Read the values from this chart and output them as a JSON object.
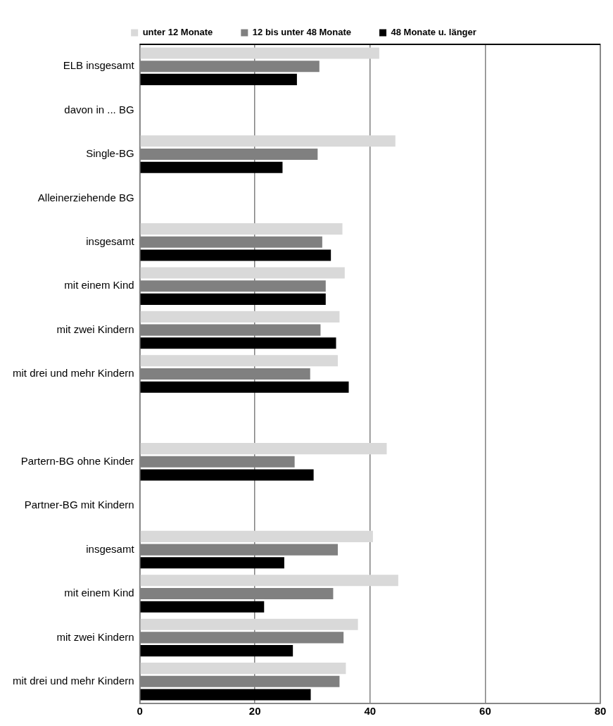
{
  "chart_data": {
    "type": "bar",
    "orientation": "horizontal",
    "categories": [
      "ELB insgesamt",
      "davon in ... BG",
      "Single-BG",
      "Alleinerziehende BG",
      "insgesamt",
      "mit einem Kind",
      "mit zwei Kindern",
      "mit drei und mehr Kindern",
      null,
      "Partern-BG ohne Kinder",
      "Partner-BG mit Kindern",
      "insgesamt",
      "mit einem Kind",
      "mit zwei Kindern",
      "mit drei und mehr Kindern"
    ],
    "series": [
      {
        "name": "unter 12 Monate",
        "color": "#d9d9d9",
        "values": [
          41.6,
          null,
          44.4,
          null,
          35.2,
          35.6,
          34.7,
          34.4,
          null,
          42.9,
          null,
          40.5,
          44.9,
          37.9,
          35.8
        ]
      },
      {
        "name": "12 bis unter 48 Monate",
        "color": "#808080",
        "values": [
          31.2,
          null,
          30.9,
          null,
          31.7,
          32.3,
          31.4,
          29.6,
          null,
          26.9,
          null,
          34.4,
          33.6,
          35.4,
          34.7
        ]
      },
      {
        "name": "48 Monate u. länger",
        "color": "#000000",
        "values": [
          27.3,
          null,
          24.8,
          null,
          33.2,
          32.3,
          34.1,
          36.3,
          null,
          30.2,
          null,
          25.1,
          21.6,
          26.6,
          29.7
        ]
      }
    ],
    "xlim": [
      0,
      80
    ],
    "xticks": [
      0,
      20,
      40,
      60,
      80
    ],
    "grid": "x",
    "legend": "top"
  }
}
